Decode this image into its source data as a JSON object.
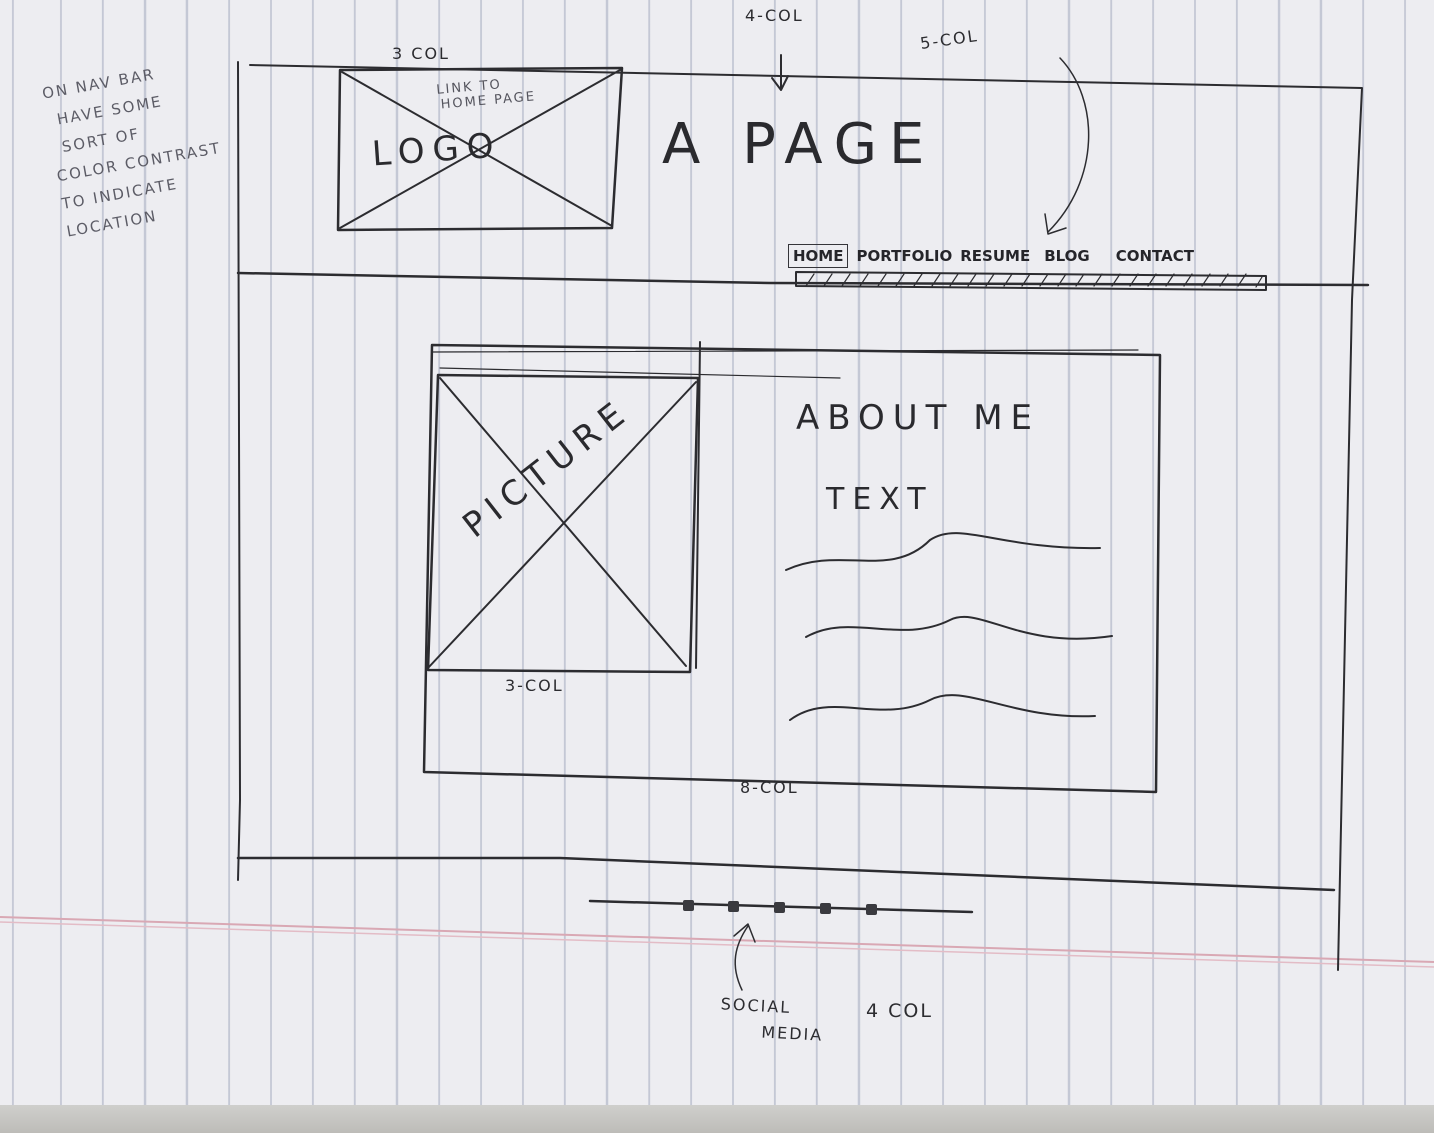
{
  "side_note": [
    "ON NAV BAR",
    "HAVE SOME",
    "SORT OF",
    "COLOR CONTRAST",
    "TO INDICATE",
    "LOCATION"
  ],
  "header": {
    "logo_label": "LOGO",
    "logo_note": [
      "LINK TO",
      "HOME PAGE"
    ],
    "logo_cols": "3 COL",
    "title": "A PAGE",
    "title_cols": "4-COL",
    "nav_cols": "5-COL"
  },
  "nav": {
    "items": [
      {
        "label": "HOME",
        "active": true
      },
      {
        "label": "PORTFOLIO",
        "active": false
      },
      {
        "label": "RESUME",
        "active": false
      },
      {
        "label": "BLOG",
        "active": false
      },
      {
        "label": "CONTACT",
        "active": false
      }
    ]
  },
  "main": {
    "picture_label": "PICTURE",
    "picture_cols": "3-COL",
    "about_heading": "ABOUT ME",
    "about_text": "TEXT",
    "content_cols": "8-COL"
  },
  "footer": {
    "social_label": [
      "SOCIAL",
      "MEDIA"
    ],
    "social_cols": "4 COL",
    "social_icon_count": 5
  },
  "colors": {
    "pencil": "#2c2c30",
    "paper": "#ededf1",
    "margin_line": "#d9a8b4"
  }
}
